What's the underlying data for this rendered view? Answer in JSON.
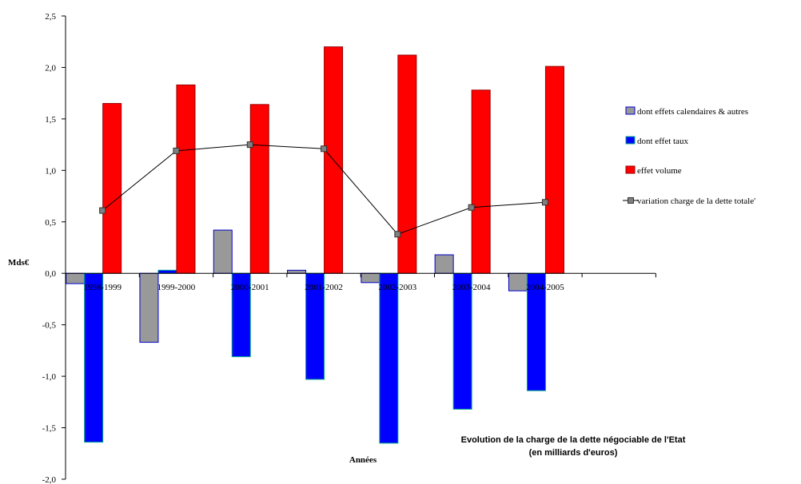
{
  "chart_data": {
    "type": "bar",
    "categories": [
      "1998-1999",
      "1999-2000",
      "2000-2001",
      "2001-2002",
      "2002-2003",
      "2003-2004",
      "2004-2005"
    ],
    "series": [
      {
        "name": "dont effets calendaires & autres",
        "kind": "bar",
        "color": "#999999",
        "stroke": "#0000cc",
        "values": [
          -0.1,
          -0.67,
          0.42,
          0.03,
          -0.09,
          0.18,
          -0.17
        ]
      },
      {
        "name": "dont effet taux",
        "kind": "bar",
        "color": "#0000ff",
        "stroke": "#00aa88",
        "values": [
          -1.64,
          0.03,
          -0.81,
          -1.03,
          -1.65,
          -1.32,
          -1.14
        ]
      },
      {
        "name": "effet volume",
        "kind": "bar",
        "color": "#ff0000",
        "stroke": "#990000",
        "values": [
          1.65,
          1.83,
          1.64,
          2.2,
          2.12,
          1.78,
          2.01
        ]
      },
      {
        "name": "variation charge de la dette totale'",
        "kind": "line",
        "color": "#000000",
        "marker_color": "#808080",
        "values": [
          0.61,
          1.19,
          1.25,
          1.21,
          0.38,
          0.64,
          0.69
        ]
      }
    ],
    "ylabel": "Mds€",
    "xlabel": "Années",
    "ylim": [
      -2.0,
      2.5
    ],
    "yticks": [
      "-2,0",
      "-1,5",
      "-1,0",
      "-0,5",
      "0,0",
      "0,5",
      "1,0",
      "1,5",
      "2,0",
      "2,5"
    ],
    "ytick_values": [
      -2.0,
      -1.5,
      -1.0,
      -0.5,
      0.0,
      0.5,
      1.0,
      1.5,
      2.0,
      2.5
    ],
    "annotation_line1": "Evolution de la charge de la dette négociable de l'Etat",
    "annotation_line2": "(en milliards d'euros)",
    "legend_position": "right",
    "grid": false
  }
}
